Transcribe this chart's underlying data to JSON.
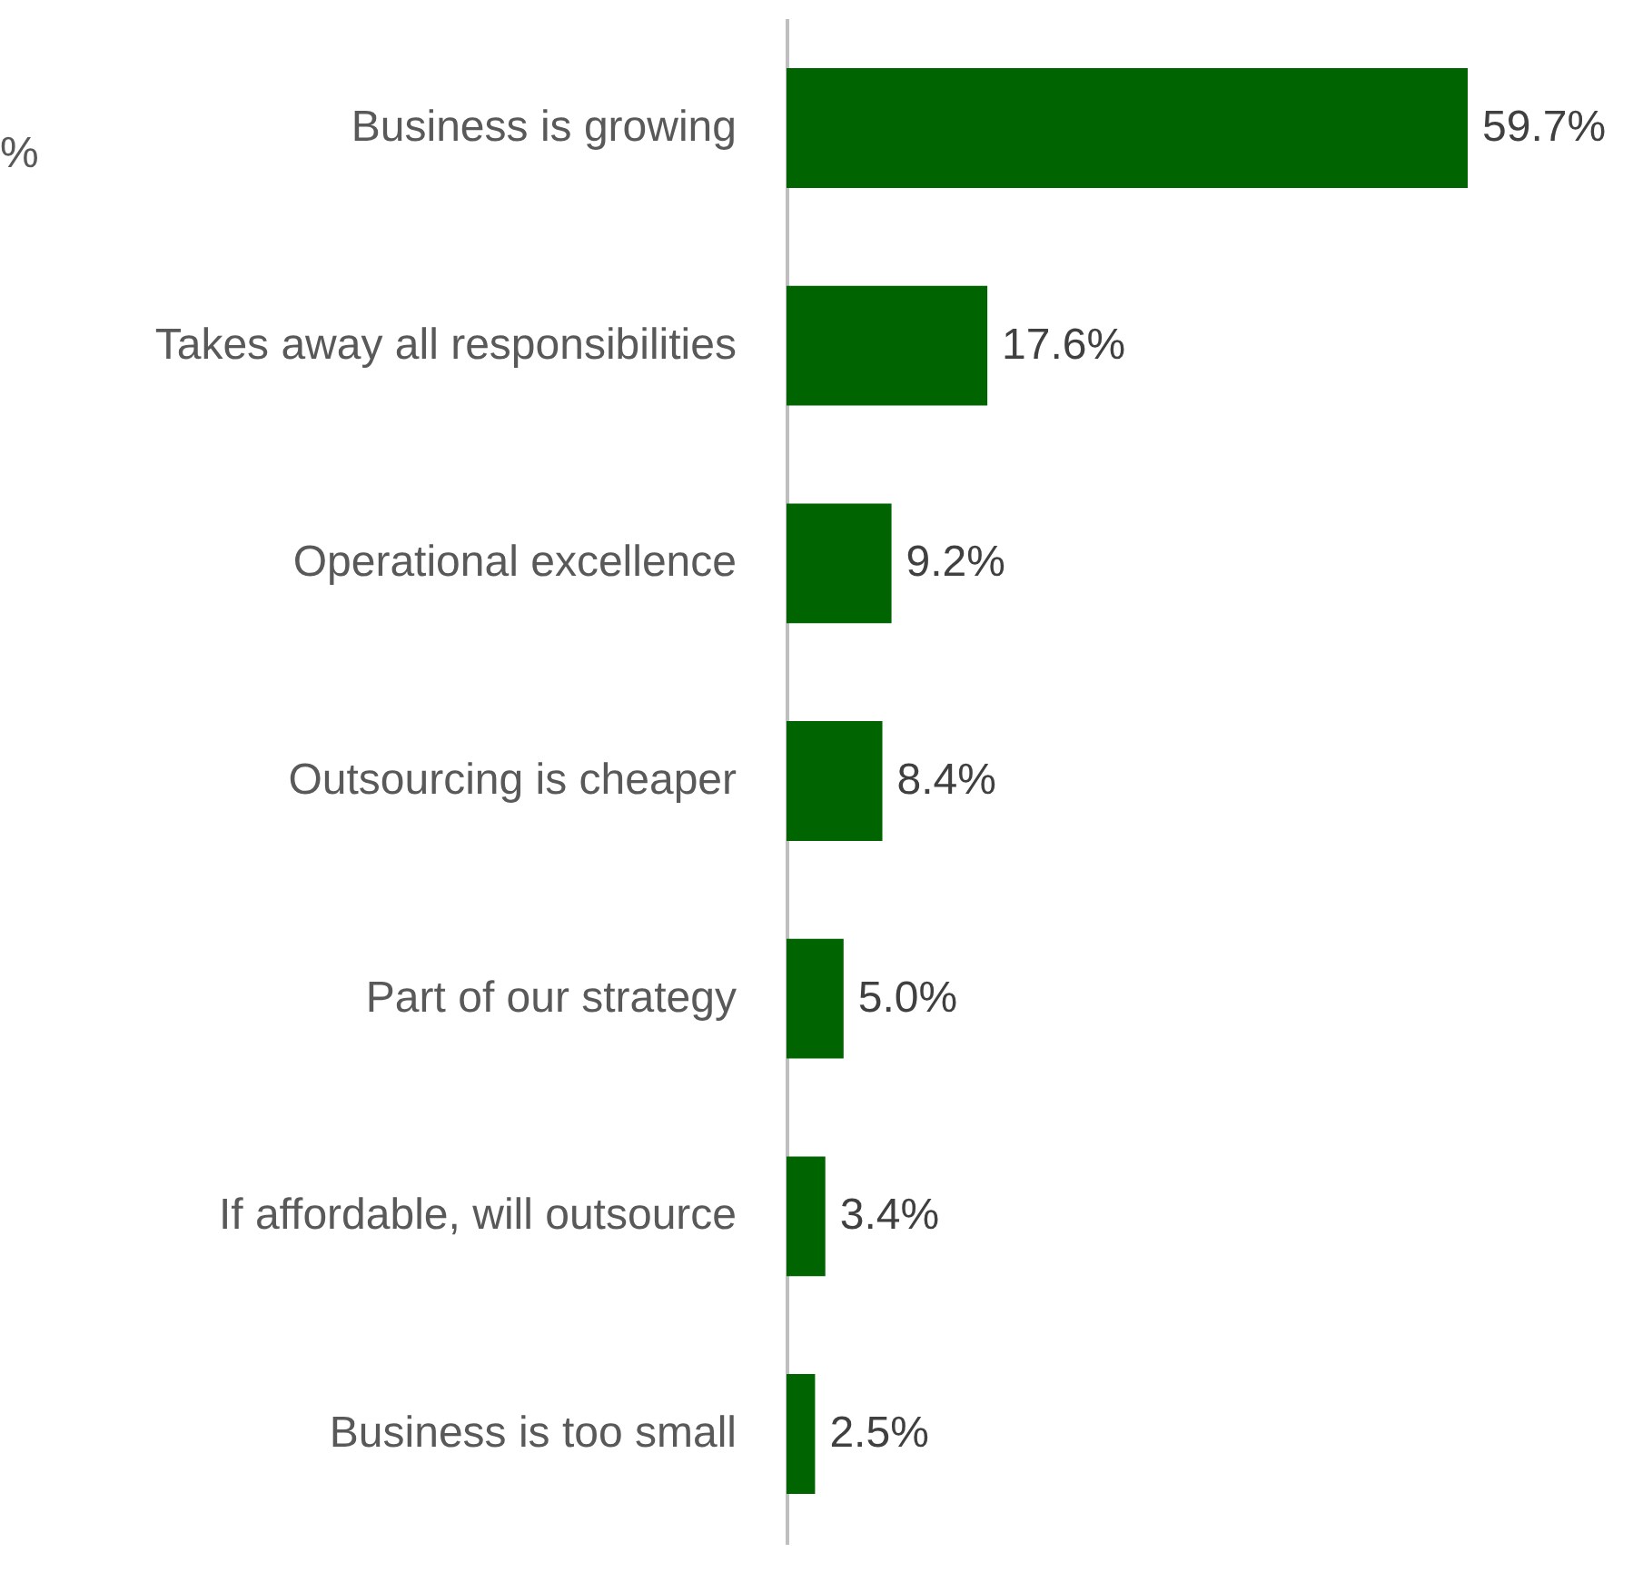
{
  "chart_data": {
    "type": "bar",
    "orientation": "horizontal",
    "data_labels": true,
    "categories": [
      "Business is growing",
      "Takes away all responsibilities",
      "Operational excellence",
      "Outsourcing is cheaper",
      "Part of our strategy",
      "If affordable, will outsource",
      "Business is too small"
    ],
    "values": [
      59.7,
      17.6,
      9.2,
      8.4,
      5.0,
      3.4,
      2.5
    ],
    "value_labels": [
      "59.7%",
      "17.6%",
      "9.2%",
      "8.4%",
      "5.0%",
      "3.4%",
      "2.5%"
    ],
    "color": "#006400",
    "annotations": [
      "%"
    ],
    "grid": false
  }
}
